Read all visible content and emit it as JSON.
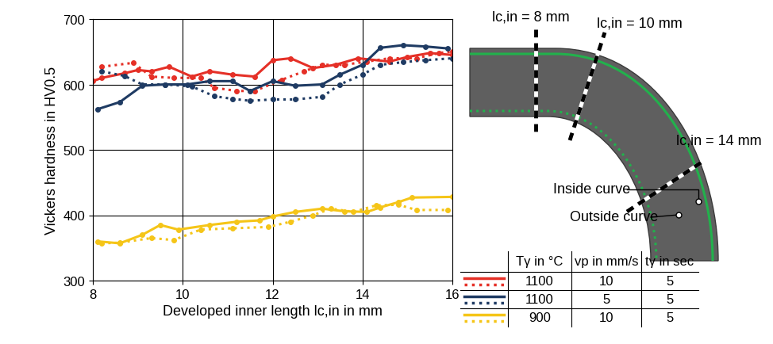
{
  "chart_data": {
    "type": "line",
    "xlabel": "Developed inner length lc,in in mm",
    "ylabel": "Vickers hardness in HV0.5",
    "xlim": [
      8,
      16
    ],
    "xticks": [
      8,
      10,
      12,
      14,
      16
    ],
    "ylim": [
      300,
      700
    ],
    "yticks": [
      300,
      400,
      500,
      600,
      700
    ],
    "grid": true,
    "series": [
      {
        "color": "#e53027",
        "line_style": "solid",
        "marker": "o",
        "x": [
          8.0,
          8.2,
          8.7,
          9.0,
          9.3,
          9.7,
          10.2,
          10.6,
          11.1,
          11.6,
          12.0,
          12.4,
          12.9,
          13.4,
          13.9,
          14.6,
          15.0,
          15.5,
          16.0
        ],
        "values": [
          605,
          610,
          617,
          622,
          620,
          627,
          612,
          620,
          615,
          612,
          637,
          640,
          625,
          630,
          640,
          635,
          642,
          648,
          645
        ]
      },
      {
        "color": "#e53027",
        "line_style": "dotted",
        "marker": "o",
        "x": [
          8.2,
          8.9,
          9.3,
          9.8,
          10.4,
          10.7,
          11.2,
          11.6,
          12.2,
          12.7,
          13.1,
          13.6,
          14.1,
          14.6,
          15.2,
          15.7,
          16.0
        ],
        "values": [
          627,
          633,
          612,
          610,
          610,
          595,
          590,
          590,
          607,
          620,
          630,
          630,
          635,
          640,
          640,
          648,
          650
        ]
      },
      {
        "color": "#1f3b63",
        "line_style": "solid",
        "marker": "o",
        "x": [
          8.1,
          8.6,
          9.1,
          9.6,
          10.1,
          10.6,
          11.1,
          11.5,
          12.0,
          12.5,
          13.1,
          13.5,
          14.0,
          14.4,
          14.9,
          15.4,
          15.9
        ],
        "values": [
          562,
          573,
          598,
          600,
          600,
          605,
          605,
          590,
          605,
          598,
          600,
          615,
          630,
          656,
          660,
          658,
          655
        ]
      },
      {
        "color": "#1f3b63",
        "line_style": "dotted",
        "marker": "o",
        "x": [
          8.2,
          8.7,
          9.1,
          9.6,
          10.2,
          10.7,
          11.1,
          11.5,
          12.0,
          12.5,
          13.1,
          13.5,
          14.0,
          14.4,
          14.9,
          15.4,
          16.0
        ],
        "values": [
          620,
          613,
          600,
          600,
          597,
          582,
          578,
          575,
          577,
          577,
          581,
          600,
          615,
          630,
          634,
          637,
          640
        ]
      },
      {
        "color": "#f5c518",
        "line_style": "solid",
        "marker": "o",
        "x": [
          8.1,
          8.6,
          9.1,
          9.5,
          9.9,
          10.6,
          11.2,
          11.7,
          12.0,
          12.5,
          13.1,
          13.6,
          14.1,
          14.4,
          14.8,
          15.1,
          16.0
        ],
        "values": [
          360,
          357,
          370,
          385,
          378,
          385,
          390,
          392,
          398,
          405,
          410,
          406,
          405,
          412,
          420,
          427,
          428
        ]
      },
      {
        "color": "#f5c518",
        "line_style": "dotted",
        "marker": "o",
        "x": [
          8.2,
          8.6,
          9.3,
          9.8,
          10.4,
          11.1,
          11.9,
          12.4,
          12.9,
          13.3,
          13.8,
          14.3,
          14.8,
          15.2,
          15.9
        ],
        "values": [
          357,
          358,
          365,
          362,
          378,
          380,
          382,
          390,
          400,
          410,
          405,
          415,
          416,
          408,
          408
        ]
      }
    ]
  },
  "diagram": {
    "cuts": [
      "lc,in = 8 mm",
      "lc,in = 10 mm",
      "lc,in = 14 mm"
    ],
    "annotations": [
      "Inside curve",
      "Outside curve"
    ]
  },
  "table": {
    "header": [
      "Tγ in °C",
      "vp in mm/s",
      "tγ in sec"
    ],
    "rows": [
      {
        "color": "#e53027",
        "values": [
          1100,
          10,
          5
        ]
      },
      {
        "color": "#1f3b63",
        "values": [
          1100,
          5,
          5
        ]
      },
      {
        "color": "#f5c518",
        "values": [
          900,
          10,
          5
        ]
      }
    ]
  }
}
